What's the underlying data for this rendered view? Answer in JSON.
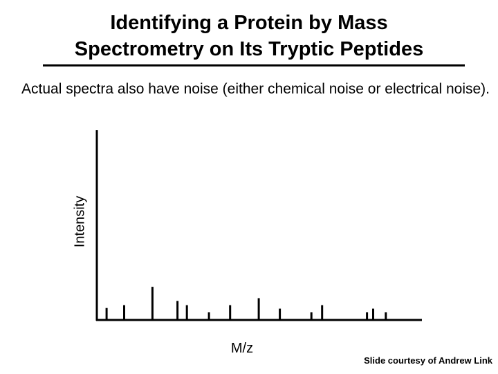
{
  "slide": {
    "title_line1": "Identifying a Protein by Mass",
    "title_line2": "Spectrometry on Its Tryptic Peptides",
    "body": "Actual spectra also have noise (either chemical noise or electrical noise).",
    "credit": "Slide courtesy of Andrew Link"
  },
  "chart_data": {
    "type": "bar",
    "xlabel": "M/z",
    "ylabel": "Intensity",
    "ylim": [
      0,
      1
    ],
    "grid": false,
    "peaks": [
      {
        "mz": 0.03,
        "intensity": 0.063
      },
      {
        "mz": 0.084,
        "intensity": 0.078
      },
      {
        "mz": 0.171,
        "intensity": 0.175
      },
      {
        "mz": 0.248,
        "intensity": 0.1
      },
      {
        "mz": 0.277,
        "intensity": 0.078
      },
      {
        "mz": 0.345,
        "intensity": 0.04
      },
      {
        "mz": 0.41,
        "intensity": 0.078
      },
      {
        "mz": 0.498,
        "intensity": 0.115
      },
      {
        "mz": 0.563,
        "intensity": 0.06
      },
      {
        "mz": 0.66,
        "intensity": 0.04
      },
      {
        "mz": 0.693,
        "intensity": 0.078
      },
      {
        "mz": 0.831,
        "intensity": 0.04
      },
      {
        "mz": 0.85,
        "intensity": 0.06
      },
      {
        "mz": 0.889,
        "intensity": 0.04
      }
    ]
  }
}
